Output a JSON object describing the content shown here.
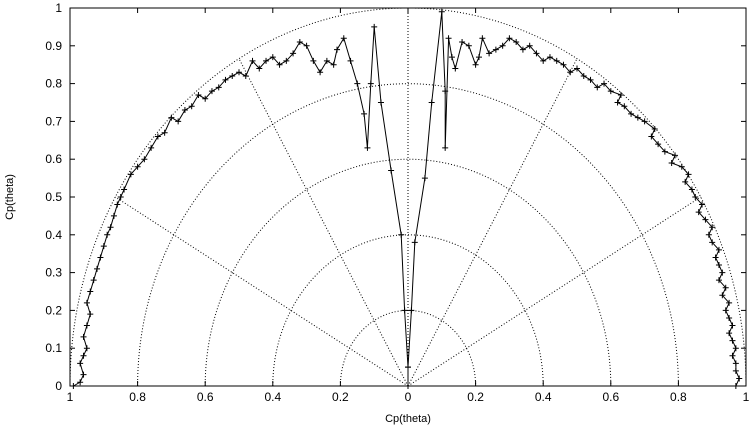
{
  "chart_data": {
    "type": "scatter",
    "title": "",
    "xlabel": "Cp(theta)",
    "ylabel": "Cp(theta)",
    "xlim": [
      -1,
      1
    ],
    "ylim": [
      0,
      1
    ],
    "grid": "polar (half-circles r = 0.2, 0.4, 0.6, 0.8, 1.0; radial spokes at 30, 60, 90, 120, 150 deg)",
    "x_ticks": [
      "1",
      "0.8",
      "0.6",
      "0.4",
      "0.2",
      "0",
      "0.2",
      "0.4",
      "0.6",
      "0.8",
      "1"
    ],
    "y_ticks": [
      "0",
      "0.1",
      "0.2",
      "0.3",
      "0.4",
      "0.5",
      "0.6",
      "0.7",
      "0.8",
      "0.9",
      "1"
    ],
    "series": [
      {
        "marker": "plus",
        "line": "solid",
        "points": [
          [
            0.97,
            0.0
          ],
          [
            0.98,
            0.02
          ],
          [
            0.97,
            0.04
          ],
          [
            0.97,
            0.06
          ],
          [
            0.96,
            0.08
          ],
          [
            0.97,
            0.1
          ],
          [
            0.96,
            0.12
          ],
          [
            0.95,
            0.14
          ],
          [
            0.96,
            0.16
          ],
          [
            0.95,
            0.18
          ],
          [
            0.94,
            0.2
          ],
          [
            0.95,
            0.22
          ],
          [
            0.93,
            0.24
          ],
          [
            0.94,
            0.26
          ],
          [
            0.92,
            0.28
          ],
          [
            0.93,
            0.3
          ],
          [
            0.92,
            0.32
          ],
          [
            0.91,
            0.34
          ],
          [
            0.92,
            0.36
          ],
          [
            0.9,
            0.38
          ],
          [
            0.89,
            0.4
          ],
          [
            0.9,
            0.42
          ],
          [
            0.88,
            0.44
          ],
          [
            0.86,
            0.46
          ],
          [
            0.87,
            0.48
          ],
          [
            0.85,
            0.5
          ],
          [
            0.84,
            0.52
          ],
          [
            0.82,
            0.54
          ],
          [
            0.83,
            0.56
          ],
          [
            0.81,
            0.58
          ],
          [
            0.78,
            0.59
          ],
          [
            0.79,
            0.61
          ],
          [
            0.76,
            0.62
          ],
          [
            0.74,
            0.64
          ],
          [
            0.72,
            0.66
          ],
          [
            0.73,
            0.68
          ],
          [
            0.7,
            0.7
          ],
          [
            0.68,
            0.71
          ],
          [
            0.66,
            0.72
          ],
          [
            0.64,
            0.74
          ],
          [
            0.62,
            0.75
          ],
          [
            0.63,
            0.77
          ],
          [
            0.6,
            0.78
          ],
          [
            0.58,
            0.8
          ],
          [
            0.56,
            0.79
          ],
          [
            0.54,
            0.81
          ],
          [
            0.52,
            0.82
          ],
          [
            0.5,
            0.84
          ],
          [
            0.48,
            0.83
          ],
          [
            0.46,
            0.85
          ],
          [
            0.44,
            0.86
          ],
          [
            0.42,
            0.87
          ],
          [
            0.4,
            0.86
          ],
          [
            0.38,
            0.88
          ],
          [
            0.36,
            0.9
          ],
          [
            0.34,
            0.89
          ],
          [
            0.32,
            0.91
          ],
          [
            0.3,
            0.92
          ],
          [
            0.28,
            0.9
          ],
          [
            0.26,
            0.89
          ],
          [
            0.24,
            0.88
          ],
          [
            0.22,
            0.92
          ],
          [
            0.21,
            0.87
          ],
          [
            0.2,
            0.85
          ],
          [
            0.18,
            0.9
          ],
          [
            0.16,
            0.91
          ],
          [
            0.14,
            0.84
          ],
          [
            0.13,
            0.87
          ],
          [
            0.12,
            0.92
          ],
          [
            0.11,
            0.63
          ],
          [
            0.11,
            0.78
          ],
          [
            0.1,
            0.99
          ],
          [
            0.07,
            0.75
          ],
          [
            0.05,
            0.55
          ],
          [
            0.02,
            0.38
          ],
          [
            0.01,
            0.2
          ],
          [
            0.0,
            0.05
          ],
          [
            0.0,
            0.0
          ]
        ]
      },
      {
        "marker": "plus",
        "line": "solid",
        "points": [
          [
            -0.0,
            0.0
          ],
          [
            -0.0,
            0.05
          ],
          [
            -0.01,
            0.2
          ],
          [
            -0.02,
            0.4
          ],
          [
            -0.05,
            0.57
          ],
          [
            -0.08,
            0.75
          ],
          [
            -0.1,
            0.95
          ],
          [
            -0.11,
            0.8
          ],
          [
            -0.12,
            0.63
          ],
          [
            -0.13,
            0.72
          ],
          [
            -0.15,
            0.8
          ],
          [
            -0.17,
            0.86
          ],
          [
            -0.19,
            0.92
          ],
          [
            -0.21,
            0.89
          ],
          [
            -0.22,
            0.85
          ],
          [
            -0.24,
            0.86
          ],
          [
            -0.26,
            0.83
          ],
          [
            -0.28,
            0.86
          ],
          [
            -0.3,
            0.9
          ],
          [
            -0.32,
            0.91
          ],
          [
            -0.34,
            0.88
          ],
          [
            -0.36,
            0.86
          ],
          [
            -0.38,
            0.85
          ],
          [
            -0.4,
            0.87
          ],
          [
            -0.42,
            0.86
          ],
          [
            -0.44,
            0.84
          ],
          [
            -0.46,
            0.86
          ],
          [
            -0.48,
            0.82
          ],
          [
            -0.5,
            0.83
          ],
          [
            -0.52,
            0.82
          ],
          [
            -0.54,
            0.81
          ],
          [
            -0.56,
            0.79
          ],
          [
            -0.58,
            0.78
          ],
          [
            -0.6,
            0.76
          ],
          [
            -0.62,
            0.77
          ],
          [
            -0.64,
            0.74
          ],
          [
            -0.66,
            0.73
          ],
          [
            -0.68,
            0.7
          ],
          [
            -0.7,
            0.71
          ],
          [
            -0.72,
            0.67
          ],
          [
            -0.74,
            0.66
          ],
          [
            -0.76,
            0.63
          ],
          [
            -0.78,
            0.6
          ],
          [
            -0.8,
            0.58
          ],
          [
            -0.82,
            0.56
          ],
          [
            -0.84,
            0.52
          ],
          [
            -0.85,
            0.5
          ],
          [
            -0.86,
            0.48
          ],
          [
            -0.87,
            0.45
          ],
          [
            -0.88,
            0.42
          ],
          [
            -0.89,
            0.4
          ],
          [
            -0.9,
            0.37
          ],
          [
            -0.91,
            0.34
          ],
          [
            -0.92,
            0.31
          ],
          [
            -0.93,
            0.28
          ],
          [
            -0.94,
            0.25
          ],
          [
            -0.95,
            0.22
          ],
          [
            -0.94,
            0.19
          ],
          [
            -0.95,
            0.16
          ],
          [
            -0.96,
            0.13
          ],
          [
            -0.95,
            0.1
          ],
          [
            -0.96,
            0.08
          ],
          [
            -0.97,
            0.06
          ],
          [
            -0.96,
            0.03
          ],
          [
            -0.97,
            0.01
          ],
          [
            -0.99,
            0.0
          ]
        ]
      }
    ]
  }
}
